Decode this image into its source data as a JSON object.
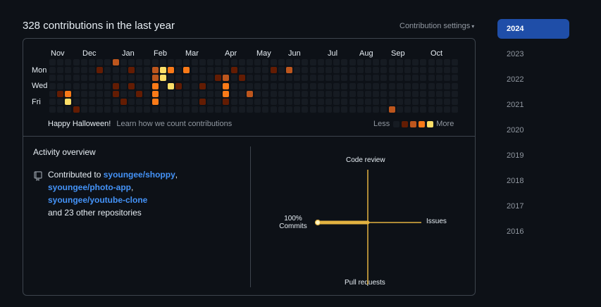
{
  "header": {
    "title": "328 contributions in the last year",
    "settings_label": "Contribution settings"
  },
  "calendar": {
    "months": [
      "Nov",
      "Dec",
      "Jan",
      "Feb",
      "Mar",
      "Apr",
      "May",
      "Jun",
      "Jul",
      "Aug",
      "Sep",
      "Oct"
    ],
    "days": [
      "Mon",
      "Wed",
      "Fri"
    ],
    "footer_theme": "Happy Halloween!",
    "footer_link": "Learn how we count contributions",
    "legend_less": "Less",
    "legend_more": "More",
    "colors": [
      "#161b22",
      "#631c03",
      "#bd561d",
      "#fa7a18",
      "#fddf68"
    ],
    "levels": [
      [
        0,
        0,
        0,
        0,
        0,
        0,
        0
      ],
      [
        0,
        0,
        0,
        0,
        1,
        0,
        0
      ],
      [
        0,
        0,
        0,
        0,
        3,
        4,
        0
      ],
      [
        0,
        0,
        0,
        0,
        0,
        0,
        1
      ],
      [
        0,
        0,
        0,
        0,
        0,
        0,
        0
      ],
      [
        0,
        0,
        0,
        0,
        0,
        0,
        0
      ],
      [
        0,
        1,
        0,
        0,
        0,
        0,
        0
      ],
      [
        0,
        0,
        0,
        0,
        0,
        0,
        0
      ],
      [
        2,
        0,
        0,
        1,
        1,
        0,
        0
      ],
      [
        0,
        0,
        0,
        0,
        0,
        1,
        0
      ],
      [
        0,
        1,
        0,
        1,
        0,
        0,
        0
      ],
      [
        0,
        0,
        0,
        0,
        1,
        0,
        0
      ],
      [
        0,
        0,
        0,
        0,
        0,
        0,
        0
      ],
      [
        0,
        2,
        2,
        3,
        3,
        3,
        0
      ],
      [
        0,
        4,
        4,
        0,
        0,
        0,
        0
      ],
      [
        0,
        3,
        0,
        4,
        0,
        0,
        0
      ],
      [
        0,
        0,
        0,
        1,
        0,
        0,
        0
      ],
      [
        0,
        3,
        0,
        0,
        0,
        0,
        0
      ],
      [
        0,
        0,
        0,
        0,
        0,
        0,
        0
      ],
      [
        0,
        0,
        0,
        1,
        0,
        1,
        0
      ],
      [
        0,
        0,
        0,
        0,
        0,
        0,
        0
      ],
      [
        0,
        0,
        1,
        0,
        0,
        0,
        0
      ],
      [
        0,
        0,
        2,
        3,
        3,
        1,
        0
      ],
      [
        0,
        1,
        0,
        0,
        0,
        0,
        0
      ],
      [
        0,
        0,
        1,
        0,
        0,
        0,
        0
      ],
      [
        0,
        0,
        0,
        0,
        2,
        0,
        0
      ],
      [
        0,
        0,
        0,
        0,
        0,
        0,
        0
      ],
      [
        0,
        0,
        0,
        0,
        0,
        0,
        0
      ],
      [
        0,
        1,
        0,
        0,
        0,
        0,
        0
      ],
      [
        0,
        0,
        0,
        0,
        0,
        0,
        0
      ],
      [
        0,
        2,
        0,
        0,
        0,
        0,
        0
      ],
      [
        0,
        0,
        0,
        0,
        0,
        0,
        0
      ],
      [
        0,
        0,
        0,
        0,
        0,
        0,
        0
      ],
      [
        0,
        0,
        0,
        0,
        0,
        0,
        0
      ],
      [
        0,
        0,
        0,
        0,
        0,
        0,
        0
      ],
      [
        0,
        0,
        0,
        0,
        0,
        0,
        0
      ],
      [
        0,
        0,
        0,
        0,
        0,
        0,
        0
      ],
      [
        0,
        0,
        0,
        0,
        0,
        0,
        0
      ],
      [
        0,
        0,
        0,
        0,
        0,
        0,
        0
      ],
      [
        0,
        0,
        0,
        0,
        0,
        0,
        0
      ],
      [
        0,
        0,
        0,
        0,
        0,
        0,
        0
      ],
      [
        0,
        0,
        0,
        0,
        0,
        0,
        0
      ],
      [
        0,
        0,
        0,
        0,
        0,
        0,
        0
      ],
      [
        0,
        0,
        0,
        0,
        0,
        0,
        2
      ],
      [
        0,
        0,
        0,
        0,
        0,
        0,
        0
      ],
      [
        0,
        0,
        0,
        0,
        0,
        0,
        0
      ],
      [
        0,
        0,
        0,
        0,
        0,
        0,
        0
      ],
      [
        0,
        0,
        0,
        0,
        0,
        0,
        0
      ],
      [
        0,
        0,
        0,
        0,
        0,
        0,
        0
      ],
      [
        0,
        0,
        0,
        0,
        0,
        0,
        0
      ],
      [
        0,
        0,
        0,
        0,
        0,
        0,
        0
      ],
      [
        0,
        0,
        0,
        0,
        0,
        0,
        0
      ]
    ]
  },
  "activity": {
    "title": "Activity overview",
    "prefix": "Contributed to ",
    "repos": [
      "syoungee/shoppy",
      "syoungee/photo-app",
      "syoungee/youtube-clone"
    ],
    "suffix": "and 23 other repositories",
    "axis": {
      "top": "Code review",
      "left_pct": "100%",
      "left": "Commits",
      "right": "Issues",
      "bottom": "Pull requests",
      "color": "#e3b341"
    }
  },
  "years": [
    "2024",
    "2023",
    "2022",
    "2021",
    "2020",
    "2019",
    "2018",
    "2017",
    "2016"
  ],
  "selected_year": "2024"
}
